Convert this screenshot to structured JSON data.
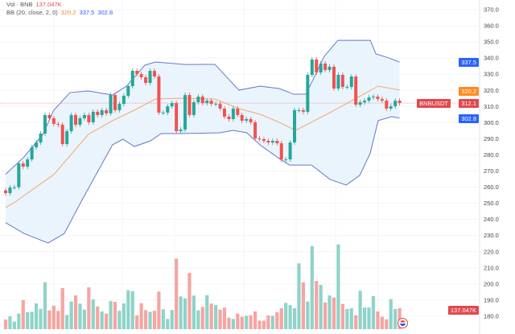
{
  "legend": {
    "vol_label": "Vol · BNB",
    "vol_value": "137.047K",
    "bb_label": "BB (20, close, 2, 0)",
    "bb_basis": "320.2",
    "bb_upper": "337.5",
    "bb_lower": "302.8"
  },
  "badges": {
    "symbol": "BNBUSDT",
    "last_price": "312.1",
    "upper": "337.5",
    "basis": "320.2",
    "lower": "302.8",
    "volume": "137.047K"
  },
  "colors": {
    "up": "#26a69a",
    "down": "#ef5350",
    "vol_up": "#8fd3c9",
    "vol_down": "#f5a5a2",
    "band": "#6678c9",
    "basis": "#f5a05a",
    "band_fill": "#eaf4fc",
    "blue_badge": "#2962ff",
    "orange_badge": "#ff8a1f",
    "red_badge": "#e0494d"
  },
  "chart_data": {
    "type": "candlestick",
    "symbol": "BNBUSDT",
    "ylim": [
      180,
      370
    ],
    "y_ticks": [
      370,
      360,
      350,
      340,
      330,
      320,
      310,
      300,
      290,
      280,
      270,
      260,
      250,
      240,
      230,
      220,
      210,
      200,
      190,
      180
    ],
    "first_open": 258,
    "close": [
      256.3,
      259.8,
      260,
      274.7,
      272.7,
      277.2,
      284.7,
      287.7,
      293.2,
      304.7,
      302.7,
      299.2,
      298.7,
      286.7,
      294.7,
      304.7,
      298.7,
      302.7,
      304.7,
      300.2,
      306.7,
      304.7,
      307.7,
      305.7,
      317.1,
      307.7,
      311.6,
      316.6,
      322.6,
      332.1,
      330.1,
      328.1,
      324.6,
      332.1,
      328.6,
      306.2,
      306.2,
      310.1,
      312.1,
      294.7,
      295.7,
      317.1,
      304.7,
      312.6,
      316.1,
      312.1,
      313.6,
      311.6,
      311.6,
      308.7,
      303.7,
      302.2,
      308.7,
      304.7,
      301.2,
      302.2,
      300.2,
      290.2,
      289.7,
      288.7,
      287.7,
      288.7,
      287.2,
      277.2,
      277.2,
      287.7,
      307.7,
      307.7,
      306.7,
      329.6,
      339.1,
      331.1,
      336.6,
      332.6,
      334.6,
      321.1,
      329.6,
      322.1,
      322.1,
      328.6,
      311.1,
      312.6,
      313.6,
      315.6,
      316.1,
      314.6,
      313.6,
      308.7,
      310.1,
      313.6,
      312.1
    ],
    "volume_k": [
      63,
      84,
      49,
      102,
      190,
      111,
      114,
      169,
      133,
      307,
      123,
      154,
      120,
      269,
      93,
      181,
      221,
      167,
      128,
      274,
      195,
      149,
      116,
      102,
      184,
      179,
      120,
      169,
      255,
      249,
      91,
      170,
      125,
      114,
      120,
      246,
      130,
      67,
      126,
      462,
      214,
      202,
      369,
      220,
      123,
      146,
      223,
      167,
      158,
      128,
      141,
      75,
      67,
      102,
      81,
      88,
      91,
      116,
      56,
      56,
      90,
      88,
      111,
      137,
      172,
      158,
      137,
      431,
      307,
      181,
      544,
      316,
      290,
      175,
      221,
      207,
      555,
      165,
      132,
      137,
      91,
      251,
      142,
      142,
      216,
      116,
      81,
      65,
      197,
      132,
      137.047
    ],
    "bollinger": {
      "period": 20,
      "source": "close",
      "stddev": 2,
      "offset": 0,
      "upper": [
        [
          0,
          268
        ],
        [
          4.2,
          278.7
        ],
        [
          8.5,
          292.7
        ],
        [
          11,
          307.7
        ],
        [
          14.7,
          318.6
        ],
        [
          18.9,
          319.6
        ],
        [
          24.4,
          317.1
        ],
        [
          27.6,
          322.6
        ],
        [
          31.8,
          335.6
        ],
        [
          34.2,
          337.6
        ],
        [
          41,
          336
        ],
        [
          47.8,
          336.1
        ],
        [
          53.3,
          320.1
        ],
        [
          58.1,
          322.6
        ],
        [
          62.5,
          321.1
        ],
        [
          65.8,
          317.6
        ],
        [
          68.6,
          317.6
        ],
        [
          72.8,
          341.1
        ],
        [
          75.9,
          351
        ],
        [
          83.3,
          351
        ],
        [
          84.6,
          342.6
        ],
        [
          87.5,
          340.1
        ],
        [
          90,
          337.5
        ]
      ],
      "basis": [
        [
          0,
          247.3
        ],
        [
          2.4,
          251.3
        ],
        [
          11,
          267.8
        ],
        [
          18.9,
          292.7
        ],
        [
          24.4,
          301.2
        ],
        [
          29.4,
          307.7
        ],
        [
          34.2,
          314.6
        ],
        [
          39.7,
          315.1
        ],
        [
          47.8,
          314.6
        ],
        [
          53.3,
          308.7
        ],
        [
          58.1,
          305.2
        ],
        [
          62.5,
          300.2
        ],
        [
          66.2,
          295.2
        ],
        [
          74.1,
          306.2
        ],
        [
          80.1,
          315.1
        ],
        [
          85.1,
          322.6
        ],
        [
          90,
          320.2
        ]
      ],
      "lower": [
        [
          0,
          238
        ],
        [
          4.2,
          231.3
        ],
        [
          9.7,
          225.4
        ],
        [
          13.4,
          231.3
        ],
        [
          17.6,
          252.8
        ],
        [
          24.4,
          286.2
        ],
        [
          26.8,
          289.7
        ],
        [
          29.4,
          285.2
        ],
        [
          33.1,
          288.7
        ],
        [
          35.5,
          293.2
        ],
        [
          39.7,
          293.2
        ],
        [
          48.9,
          293.7
        ],
        [
          52,
          295.2
        ],
        [
          55.1,
          293.7
        ],
        [
          58.1,
          286.2
        ],
        [
          62.5,
          277.7
        ],
        [
          64.9,
          273.7
        ],
        [
          69.9,
          273.7
        ],
        [
          74.1,
          264.8
        ],
        [
          77.8,
          261.3
        ],
        [
          80.9,
          267.3
        ],
        [
          83.3,
          281.2
        ],
        [
          85.1,
          301.2
        ],
        [
          88.2,
          303.7
        ],
        [
          90,
          302.8
        ]
      ]
    }
  }
}
